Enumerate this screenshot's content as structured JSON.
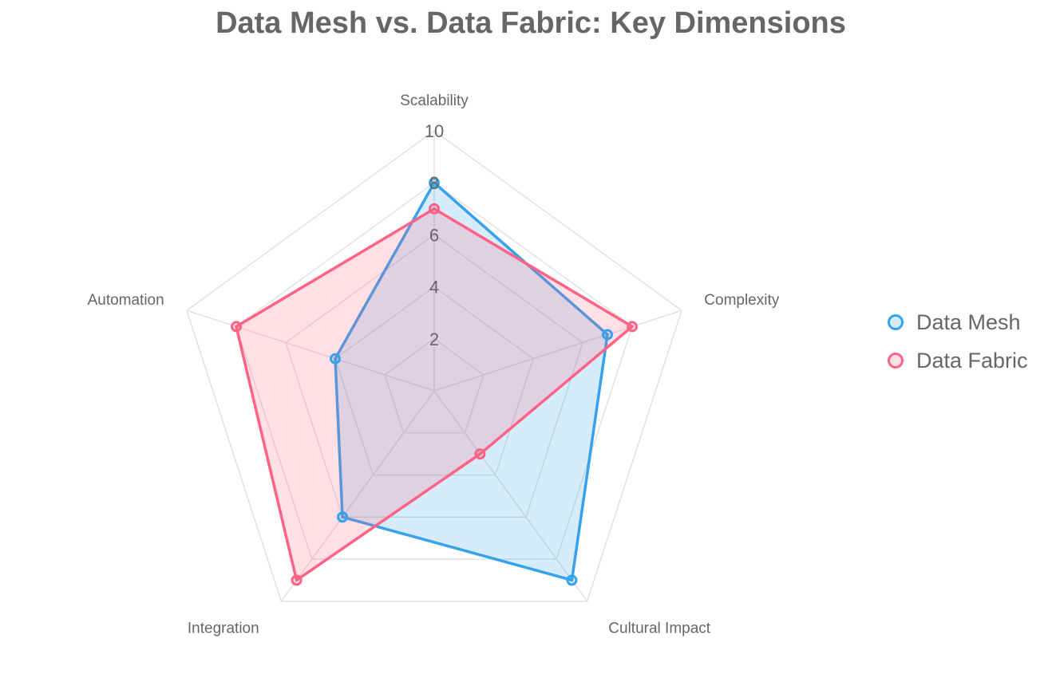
{
  "chart_data": {
    "type": "radar",
    "title": "Data Mesh vs. Data Fabric: Key Dimensions",
    "axes": [
      "Scalability",
      "Complexity",
      "Cultural Impact",
      "Integration",
      "Automation"
    ],
    "r_ticks": [
      "2",
      "4",
      "6",
      "8",
      "10"
    ],
    "r_range": [
      0,
      10
    ],
    "legend_position": "right",
    "series": [
      {
        "name": "Data Mesh",
        "values": [
          8,
          7,
          9,
          6,
          4
        ],
        "color": "#36a2eb",
        "fill": "rgba(54,162,235,0.2)"
      },
      {
        "name": "Data Fabric",
        "values": [
          7,
          8,
          3,
          9,
          8
        ],
        "color": "#ff6384",
        "fill": "rgba(255,99,132,0.2)"
      }
    ]
  }
}
